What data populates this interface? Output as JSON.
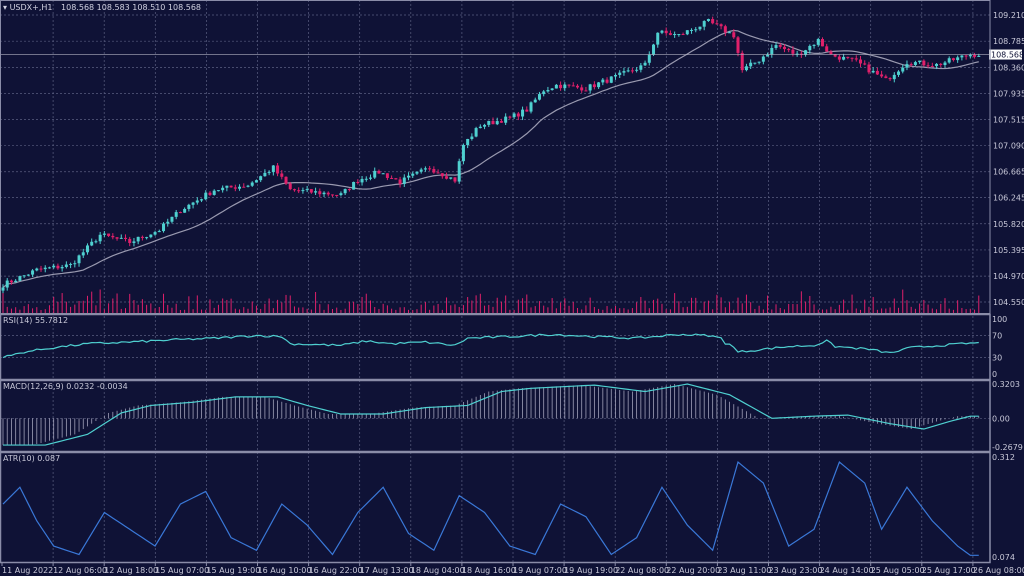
{
  "header": {
    "symbol": "USDX+,H1",
    "ohlc": "108.568 108.583 108.510 108.568"
  },
  "colors": {
    "background": "#0f1236",
    "bull": "#4fd0d0",
    "bear": "#e0206a",
    "ma": "#9a9ab0",
    "indicator": "#4fd0d0",
    "atr": "#3a78d8",
    "grid": "#5a5e80",
    "frame": "#8a8ca8"
  },
  "chart_data": [
    {
      "type": "candlestick",
      "title": "USDX+,H1",
      "last_price": "108.568",
      "ylim": [
        104.45,
        109.3
      ],
      "y_ticks": [
        "109.210",
        "108.785",
        "108.360",
        "107.935",
        "107.515",
        "107.090",
        "106.665",
        "106.245",
        "105.820",
        "105.395",
        "104.970",
        "104.550"
      ],
      "x_ticks": [
        "11 Aug 2022",
        "12 Aug 06:00",
        "12 Aug 18:00",
        "15 Aug 07:00",
        "15 Aug 19:00",
        "16 Aug 10:00",
        "16 Aug 22:00",
        "17 Aug 13:00",
        "18 Aug 04:00",
        "18 Aug 16:00",
        "19 Aug 07:00",
        "19 Aug 19:00",
        "22 Aug 08:00",
        "22 Aug 20:00",
        "23 Aug 11:00",
        "23 Aug 23:00",
        "24 Aug 14:00",
        "25 Aug 05:00",
        "25 Aug 17:00",
        "26 Aug 08:00"
      ],
      "bars": 232,
      "close_path": [
        [
          0,
          104.83
        ],
        [
          8,
          105.07
        ],
        [
          16,
          105.15
        ],
        [
          23,
          105.64
        ],
        [
          30,
          105.52
        ],
        [
          37,
          105.72
        ],
        [
          42,
          106.04
        ],
        [
          50,
          106.37
        ],
        [
          58,
          106.45
        ],
        [
          64,
          106.73
        ],
        [
          68,
          106.37
        ],
        [
          80,
          106.29
        ],
        [
          84,
          106.53
        ],
        [
          89,
          106.66
        ],
        [
          94,
          106.5
        ],
        [
          101,
          106.73
        ],
        [
          107,
          106.53
        ],
        [
          109,
          107.1
        ],
        [
          113,
          107.42
        ],
        [
          120,
          107.54
        ],
        [
          124,
          107.67
        ],
        [
          128,
          107.99
        ],
        [
          131,
          108.07
        ],
        [
          138,
          108.02
        ],
        [
          146,
          108.23
        ],
        [
          152,
          108.4
        ],
        [
          155,
          108.93
        ],
        [
          160,
          108.88
        ],
        [
          167,
          109.1
        ],
        [
          173,
          108.88
        ],
        [
          175,
          108.31
        ],
        [
          179,
          108.48
        ],
        [
          183,
          108.72
        ],
        [
          188,
          108.56
        ],
        [
          193,
          108.8
        ],
        [
          196,
          108.56
        ],
        [
          202,
          108.45
        ],
        [
          209,
          108.15
        ],
        [
          214,
          108.45
        ],
        [
          221,
          108.4
        ],
        [
          229,
          108.57
        ]
      ]
    },
    {
      "type": "line",
      "title": "RSI(14) 55.7812",
      "ylim": [
        0,
        100
      ],
      "y_ticks": [
        "100",
        "70",
        "30",
        "0"
      ],
      "path": [
        [
          0,
          30
        ],
        [
          5,
          40
        ],
        [
          12,
          48
        ],
        [
          20,
          55
        ],
        [
          30,
          58
        ],
        [
          40,
          62
        ],
        [
          50,
          65
        ],
        [
          60,
          70
        ],
        [
          66,
          68
        ],
        [
          68,
          55
        ],
        [
          80,
          52
        ],
        [
          86,
          60
        ],
        [
          92,
          55
        ],
        [
          100,
          58
        ],
        [
          107,
          52
        ],
        [
          110,
          65
        ],
        [
          120,
          68
        ],
        [
          130,
          72
        ],
        [
          140,
          68
        ],
        [
          150,
          65
        ],
        [
          160,
          72
        ],
        [
          167,
          70
        ],
        [
          170,
          65
        ],
        [
          168,
          60
        ],
        [
          172,
          55
        ],
        [
          174,
          40
        ],
        [
          180,
          45
        ],
        [
          186,
          50
        ],
        [
          192,
          52
        ],
        [
          195,
          60
        ],
        [
          197,
          50
        ],
        [
          205,
          45
        ],
        [
          210,
          38
        ],
        [
          215,
          48
        ],
        [
          222,
          52
        ],
        [
          229,
          56
        ]
      ]
    },
    {
      "type": "bar+line",
      "title": "MACD(12,26,9) 0.0232 -0.0034",
      "ylim": [
        -0.2679,
        0.3203
      ],
      "y_ticks": [
        "0.3203",
        "0.00",
        "-0.2679"
      ],
      "path": [
        [
          0,
          -0.25
        ],
        [
          10,
          -0.25
        ],
        [
          20,
          -0.15
        ],
        [
          28,
          0.05
        ],
        [
          35,
          0.12
        ],
        [
          45,
          0.15
        ],
        [
          55,
          0.2
        ],
        [
          65,
          0.2
        ],
        [
          72,
          0.12
        ],
        [
          80,
          0.04
        ],
        [
          90,
          0.04
        ],
        [
          100,
          0.1
        ],
        [
          110,
          0.12
        ],
        [
          118,
          0.25
        ],
        [
          125,
          0.28
        ],
        [
          140,
          0.31
        ],
        [
          152,
          0.25
        ],
        [
          162,
          0.32
        ],
        [
          172,
          0.22
        ],
        [
          182,
          0.0
        ],
        [
          192,
          0.02
        ],
        [
          200,
          0.03
        ],
        [
          210,
          -0.05
        ],
        [
          218,
          -0.1
        ],
        [
          224,
          -0.03
        ],
        [
          229,
          0.02
        ]
      ]
    },
    {
      "type": "line",
      "title": "ATR(10) 0.087",
      "ylim": [
        0.074,
        0.312
      ],
      "y_ticks": [
        "0.312",
        "0.074"
      ],
      "path": [
        [
          0,
          0.2
        ],
        [
          4,
          0.24
        ],
        [
          8,
          0.16
        ],
        [
          12,
          0.1
        ],
        [
          18,
          0.08
        ],
        [
          24,
          0.18
        ],
        [
          30,
          0.14
        ],
        [
          36,
          0.1
        ],
        [
          42,
          0.2
        ],
        [
          48,
          0.23
        ],
        [
          54,
          0.12
        ],
        [
          60,
          0.09
        ],
        [
          66,
          0.2
        ],
        [
          72,
          0.15
        ],
        [
          78,
          0.08
        ],
        [
          84,
          0.18
        ],
        [
          90,
          0.24
        ],
        [
          96,
          0.13
        ],
        [
          102,
          0.09
        ],
        [
          108,
          0.22
        ],
        [
          114,
          0.18
        ],
        [
          120,
          0.1
        ],
        [
          126,
          0.08
        ],
        [
          132,
          0.2
        ],
        [
          138,
          0.17
        ],
        [
          144,
          0.08
        ],
        [
          150,
          0.12
        ],
        [
          156,
          0.24
        ],
        [
          162,
          0.15
        ],
        [
          168,
          0.09
        ],
        [
          174,
          0.3
        ],
        [
          180,
          0.25
        ],
        [
          186,
          0.1
        ],
        [
          192,
          0.14
        ],
        [
          198,
          0.3
        ],
        [
          204,
          0.25
        ],
        [
          208,
          0.14
        ],
        [
          214,
          0.24
        ],
        [
          220,
          0.16
        ],
        [
          226,
          0.1
        ],
        [
          229,
          0.078
        ]
      ]
    }
  ]
}
